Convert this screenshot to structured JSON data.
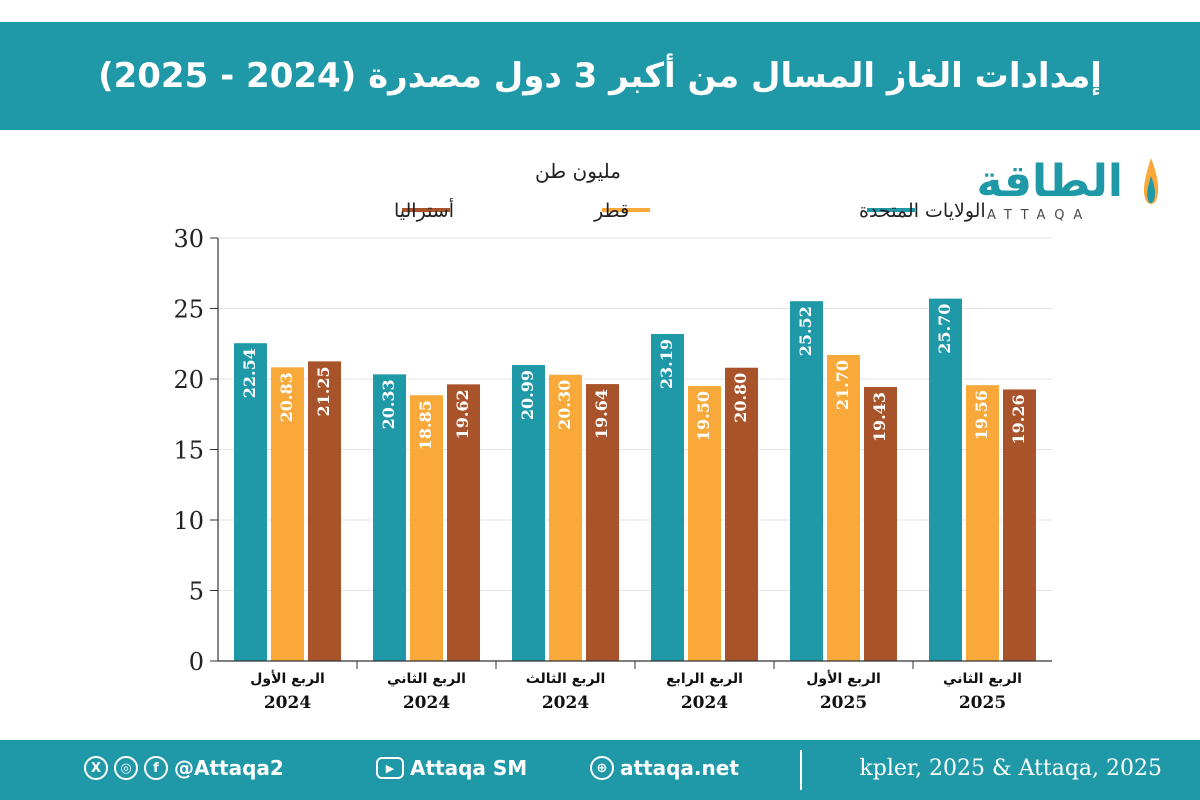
{
  "header": {
    "title": "إمدادات الغاز المسال من أكبر 3 دول مصدرة (2024 - 2025)"
  },
  "logo": {
    "arabic": "الطاقة",
    "english": "ATTAQA"
  },
  "colors": {
    "usa": "#1f98a8",
    "qatar": "#f8a93a",
    "australia": "#a9532a",
    "header_bg": "#1f98a8",
    "footer_bg": "#1f98a8"
  },
  "chart_data": {
    "type": "bar",
    "unit_label": "مليون طن",
    "categories": [
      {
        "line1": "الربع الأول",
        "line2": "2024"
      },
      {
        "line1": "الربع الثاني",
        "line2": "2024"
      },
      {
        "line1": "الربع الثالث",
        "line2": "2024"
      },
      {
        "line1": "الربع الرابع",
        "line2": "2024"
      },
      {
        "line1": "الربع الأول",
        "line2": "2025"
      },
      {
        "line1": "الربع الثاني",
        "line2": "2025"
      }
    ],
    "series": [
      {
        "name": "الولايات المتحدة",
        "color": "#1f98a8",
        "values": [
          22.54,
          20.33,
          20.99,
          23.19,
          25.52,
          25.7
        ]
      },
      {
        "name": "قطر",
        "color": "#f8a93a",
        "values": [
          20.83,
          18.85,
          20.3,
          19.5,
          21.7,
          19.56
        ]
      },
      {
        "name": "أستراليا",
        "color": "#a9532a",
        "values": [
          21.25,
          19.62,
          19.64,
          20.8,
          19.43,
          19.26
        ]
      }
    ],
    "ylim": [
      0,
      30
    ],
    "yticks": [
      0,
      5,
      10,
      15,
      20,
      25,
      30
    ],
    "grid": true,
    "legend_position": "top"
  },
  "footer": {
    "handle": "@Attaqa2",
    "youtube": "Attaqa SM",
    "website": "attaqa.net",
    "source": "kpler, 2025 & Attaqa, 2025",
    "icons": [
      "x-icon",
      "instagram-icon",
      "facebook-icon",
      "youtube-icon",
      "globe-icon"
    ]
  }
}
